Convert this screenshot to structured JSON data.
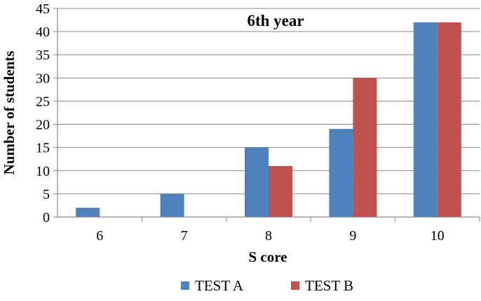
{
  "chart_data": {
    "type": "bar",
    "title": "6th year",
    "xlabel": "S core",
    "ylabel": "Number of students",
    "categories": [
      "6",
      "7",
      "8",
      "9",
      "10"
    ],
    "series": [
      {
        "name": "TEST A",
        "color": "#4F81BD",
        "values": [
          2,
          5,
          15,
          19,
          42
        ]
      },
      {
        "name": "TEST B",
        "color": "#C0504D",
        "values": [
          0,
          0,
          11,
          30,
          42
        ]
      }
    ],
    "ylim": [
      0,
      45
    ],
    "yticks": [
      "0",
      "5",
      "10",
      "15",
      "20",
      "25",
      "30",
      "35",
      "40",
      "45"
    ],
    "grid": true,
    "legend_position": "bottom"
  }
}
